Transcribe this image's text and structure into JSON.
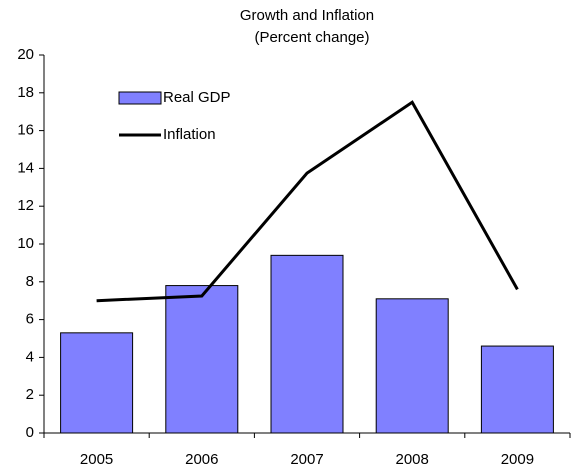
{
  "chart_data": {
    "type": "combo",
    "title": "Growth and Inflation",
    "subtitle": "(Percent change)",
    "categories": [
      "2005",
      "2006",
      "2007",
      "2008",
      "2009"
    ],
    "series": [
      {
        "name": "Real GDP",
        "type": "bar",
        "color": "#8080ff",
        "values": [
          5.3,
          7.8,
          9.4,
          7.1,
          4.6
        ]
      },
      {
        "name": "Inflation",
        "type": "line",
        "color": "#000000",
        "values": [
          7.0,
          7.25,
          13.75,
          17.5,
          7.6
        ]
      }
    ],
    "ylim": [
      0,
      20
    ],
    "yticks": [
      0,
      2,
      4,
      6,
      8,
      10,
      12,
      14,
      16,
      18,
      20
    ],
    "grid": false,
    "legend": "upper-left"
  }
}
